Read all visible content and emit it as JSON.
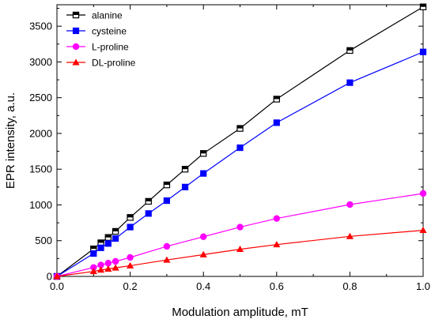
{
  "chart_data": {
    "type": "line",
    "xlabel": "Modulation amplitude, mT",
    "ylabel": "EPR intensity, a.u.",
    "xlim": [
      0.0,
      1.0
    ],
    "ylim": [
      0,
      3800
    ],
    "x_ticks": [
      "0.0",
      "0.2",
      "0.4",
      "0.6",
      "0.8",
      "1.0"
    ],
    "y_ticks": [
      "0",
      "500",
      "1000",
      "1500",
      "2000",
      "2500",
      "3000",
      "3500"
    ],
    "grid": false,
    "legend_position": "top-left",
    "series": [
      {
        "name": "alanine",
        "color": "#000000",
        "marker": "half-filled-square",
        "x": [
          0,
          0.1,
          0.12,
          0.14,
          0.16,
          0.2,
          0.25,
          0.3,
          0.35,
          0.4,
          0.5,
          0.6,
          0.8,
          1.0
        ],
        "y": [
          0,
          385,
          470,
          545,
          630,
          825,
          1050,
          1280,
          1500,
          1720,
          2070,
          2480,
          3160,
          3770
        ]
      },
      {
        "name": "cysteine",
        "color": "#0000ff",
        "marker": "square",
        "x": [
          0,
          0.1,
          0.12,
          0.14,
          0.16,
          0.2,
          0.25,
          0.3,
          0.35,
          0.4,
          0.5,
          0.6,
          0.8,
          1.0
        ],
        "y": [
          0,
          320,
          400,
          460,
          530,
          690,
          880,
          1060,
          1250,
          1440,
          1800,
          2150,
          2710,
          3140
        ]
      },
      {
        "name": "L-proline",
        "color": "#ff00ff",
        "marker": "circle",
        "x": [
          0,
          0.1,
          0.12,
          0.14,
          0.16,
          0.2,
          0.3,
          0.4,
          0.5,
          0.6,
          0.8,
          1.0
        ],
        "y": [
          0,
          125,
          160,
          185,
          210,
          265,
          420,
          555,
          690,
          810,
          1005,
          1160
        ]
      },
      {
        "name": "DL-proline",
        "color": "#ff0000",
        "marker": "triangle",
        "x": [
          0,
          0.1,
          0.12,
          0.14,
          0.16,
          0.2,
          0.3,
          0.4,
          0.5,
          0.6,
          0.8,
          1.0
        ],
        "y": [
          0,
          70,
          90,
          105,
          120,
          150,
          230,
          305,
          380,
          445,
          560,
          645
        ]
      }
    ]
  }
}
